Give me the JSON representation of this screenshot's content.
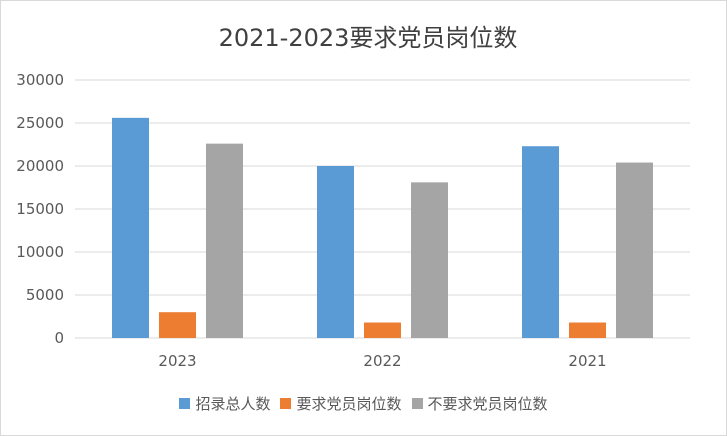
{
  "chart_data": {
    "type": "bar",
    "title": "2021-2023要求党员岗位数",
    "categories": [
      "2023",
      "2022",
      "2021"
    ],
    "series": [
      {
        "name": "招录总人数",
        "values": [
          25600,
          20000,
          22300
        ],
        "color": "#5b9bd5"
      },
      {
        "name": "要求党员岗位数",
        "values": [
          3000,
          1800,
          1800
        ],
        "color": "#ed7d31"
      },
      {
        "name": "不要求党员岗位数",
        "values": [
          22600,
          18100,
          20400
        ],
        "color": "#a5a5a5"
      }
    ],
    "ylim": [
      0,
      30000
    ],
    "yticks": [
      0,
      5000,
      10000,
      15000,
      20000,
      25000,
      30000
    ],
    "grid": true,
    "legend_position": "bottom"
  }
}
